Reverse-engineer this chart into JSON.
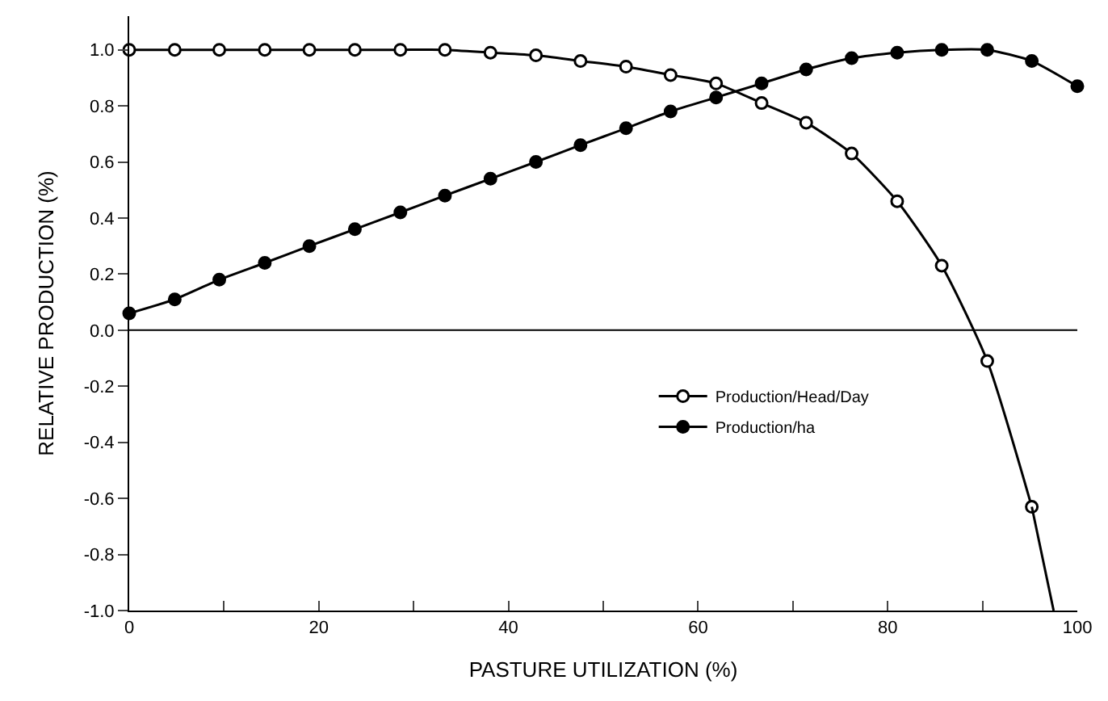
{
  "chart_data": {
    "type": "line",
    "xlabel": "PASTURE UTILIZATION (%)",
    "ylabel": "RELATIVE PRODUCTION (%)",
    "x": [
      0,
      4.8,
      9.5,
      14.3,
      19.0,
      23.8,
      28.6,
      33.3,
      38.1,
      42.9,
      47.6,
      52.4,
      57.1,
      61.9,
      66.7,
      71.4,
      76.2,
      81.0,
      85.7,
      90.5,
      95.2,
      100
    ],
    "series": [
      {
        "name": "Production/Head/Day",
        "color": "#000000",
        "marker": "circle-open",
        "x": [
          0,
          4.8,
          9.5,
          14.3,
          19.0,
          23.8,
          28.6,
          33.3,
          38.1,
          42.9,
          47.6,
          52.4,
          57.1,
          61.9,
          66.7,
          71.4,
          76.2,
          81.0,
          85.7,
          90.5,
          95.2
        ],
        "values": [
          1.0,
          1.0,
          1.0,
          1.0,
          1.0,
          1.0,
          1.0,
          1.0,
          0.99,
          0.98,
          0.96,
          0.94,
          0.91,
          0.88,
          0.81,
          0.74,
          0.63,
          0.46,
          0.23,
          -0.11,
          -0.63
        ]
      },
      {
        "color": "#000000",
        "marker": "none",
        "x": [
          95.2,
          97.5
        ],
        "values": [
          -0.63,
          -1.0
        ]
      },
      {
        "name": "Production/ha",
        "color": "#000000",
        "marker": "circle",
        "values": [
          0.06,
          0.11,
          0.18,
          0.24,
          0.3,
          0.36,
          0.42,
          0.48,
          0.54,
          0.6,
          0.66,
          0.72,
          0.78,
          0.83,
          0.88,
          0.93,
          0.97,
          0.99,
          1.0,
          1.0,
          0.96,
          0.87
        ]
      }
    ],
    "xlim": [
      0,
      100
    ],
    "xticks": [
      0,
      {
        "value": 10,
        "label": null
      },
      20,
      {
        "value": 30,
        "label": null
      },
      40,
      {
        "value": 50,
        "label": null
      },
      60,
      {
        "value": 70,
        "label": null
      },
      80,
      {
        "value": 90,
        "label": null
      },
      100
    ],
    "ylim": [
      -1.0,
      1.12
    ],
    "yticks": [
      {
        "value": -1.0,
        "label": "-1.0"
      },
      -0.8,
      -0.6,
      -0.4,
      -0.2,
      {
        "value": 0,
        "label": "0.0"
      },
      0.2,
      0.4,
      0.6,
      0.8,
      {
        "value": 1.0,
        "label": "1.0"
      }
    ],
    "ref_lines": [
      {
        "axis": "y",
        "value": 0,
        "color": "#000000"
      }
    ],
    "legend": "right",
    "line_style": "solid"
  }
}
